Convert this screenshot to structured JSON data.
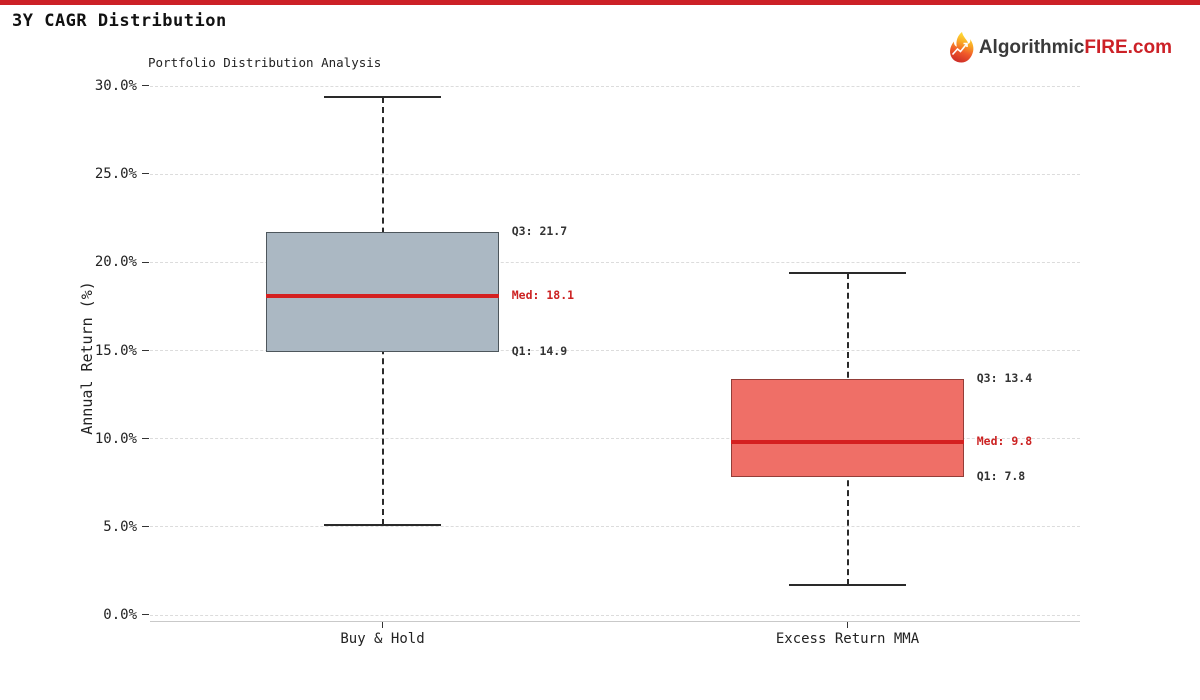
{
  "header": {
    "title": "3Y CAGR Distribution",
    "logo": {
      "prefix": "Algorithmic",
      "suffix": "FIRE.com",
      "icon": "flame-icon"
    }
  },
  "chart_data": {
    "type": "boxplot",
    "title": "Portfolio Distribution Analysis",
    "xlabel": "",
    "ylabel": "Annual Return (%)",
    "ylim": [
      0,
      30
    ],
    "yticks": [
      0,
      5,
      10,
      15,
      20,
      25,
      30
    ],
    "ytick_labels": [
      "0.0%",
      "5.0%",
      "10.0%",
      "15.0%",
      "20.0%",
      "25.0%",
      "30.0%"
    ],
    "grid": "horizontal dashed",
    "legend": "none",
    "categories": [
      "Buy & Hold",
      "Excess Return MMA"
    ],
    "boxes": [
      {
        "category": "Buy & Hold",
        "whisker_high": 29.4,
        "q3": 21.7,
        "median": 18.1,
        "q1": 14.9,
        "whisker_low": 5.1,
        "fill_color": "#abb8c3",
        "edge_color": "#4d565c",
        "median_color": "#d42020",
        "labels": {
          "q3": "Q3: 21.7",
          "median": "Med: 18.1",
          "q1": "Q1: 14.9"
        }
      },
      {
        "category": "Excess Return MMA",
        "whisker_high": 19.4,
        "q3": 13.4,
        "median": 9.8,
        "q1": 7.8,
        "whisker_low": 1.7,
        "fill_color": "#ef6f67",
        "edge_color": "#943d38",
        "median_color": "#d42020",
        "labels": {
          "q3": "Q3: 13.4",
          "median": "Med: 9.8",
          "q1": "Q1: 7.8"
        }
      }
    ],
    "colors": {
      "accent": "#cc2127",
      "annotation_text": "#333333",
      "median_label": "#cc2222",
      "whisker": "#2a2a2a"
    }
  }
}
